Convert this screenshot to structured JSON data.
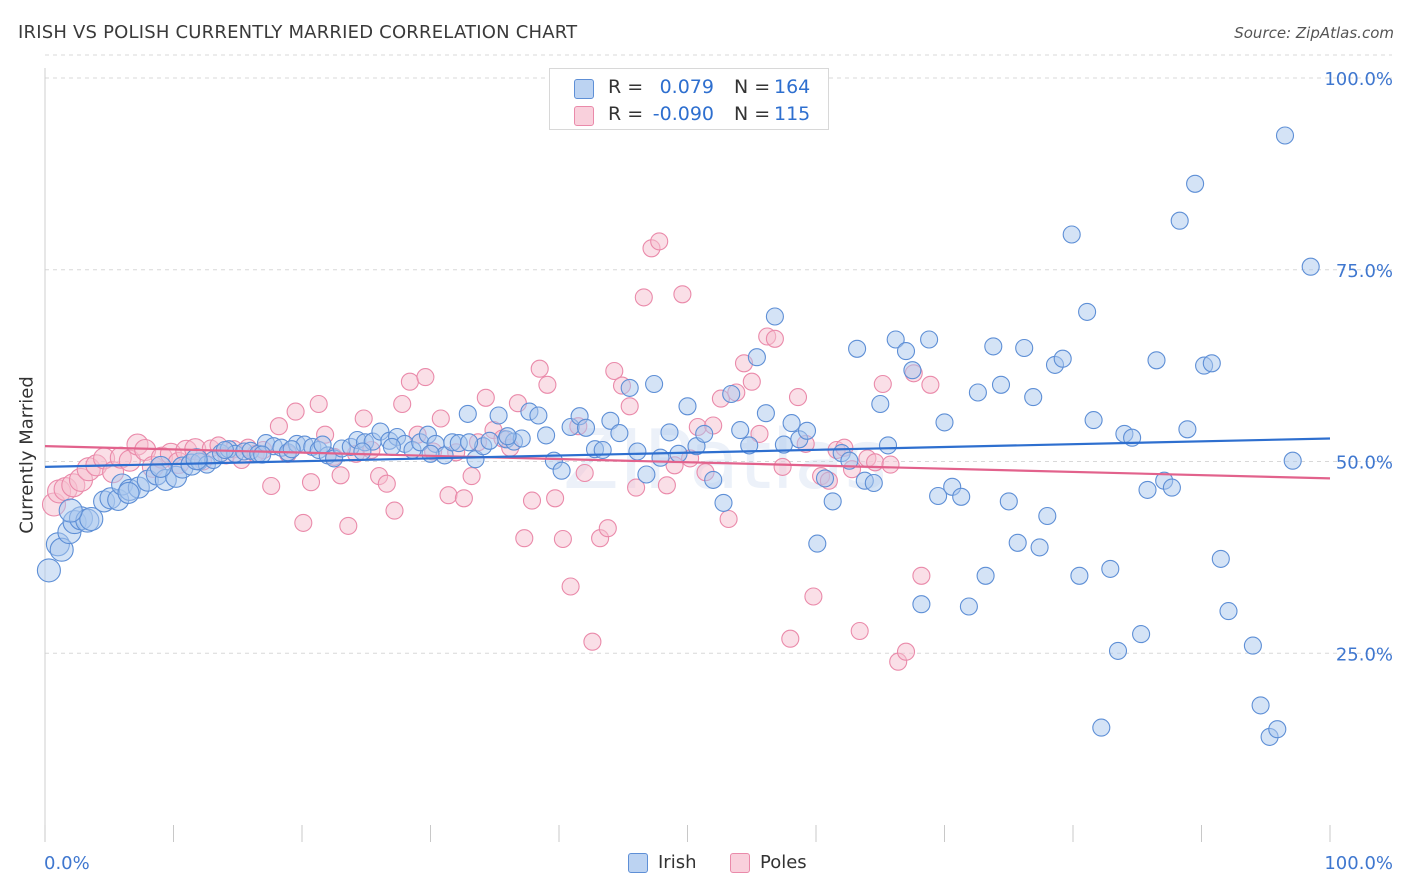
{
  "title": "IRISH VS POLISH CURRENTLY MARRIED CORRELATION CHART",
  "source": "Source: ZipAtlas.com",
  "watermark": "ZIPatlas",
  "legend_top": {
    "series": [
      {
        "r_label": "R =",
        "r_value": "0.079",
        "n_label": "N =",
        "n_value": "164"
      },
      {
        "r_label": "R =",
        "r_value": "-0.090",
        "n_label": "N =",
        "n_value": "115"
      }
    ]
  },
  "bottom_legend": [
    "Irish",
    "Poles"
  ],
  "colors": {
    "irish_fill": "#a9c7ee",
    "irish_stroke": "#5e8fd6",
    "irish_line": "#2e6fcf",
    "poles_fill": "#f6bfd0",
    "poles_stroke": "#ea8aaa",
    "poles_line": "#e2628c",
    "tick_text": "#3f77cf",
    "grid": "#d8d8d8"
  },
  "chart_data": {
    "type": "scatter",
    "title": "IRISH VS POLISH CURRENTLY MARRIED CORRELATION CHART",
    "xlabel": "",
    "ylabel": "Currently Married",
    "xlim": [
      0,
      100
    ],
    "ylim": [
      0,
      103
    ],
    "x_tick_labels": [
      "0.0%",
      "100.0%"
    ],
    "y_ticks": [
      25,
      50,
      75,
      100
    ],
    "y_tick_labels": [
      "25.0%",
      "50.0%",
      "75.0%",
      "100.0%"
    ],
    "grid": true,
    "legend_position": "top-center",
    "series": [
      {
        "name": "Irish",
        "r": 0.079,
        "n": 164,
        "trend": {
          "x": [
            0,
            100
          ],
          "y": [
            49.3,
            53.0
          ]
        },
        "points": [
          [
            0.3,
            35.8
          ],
          [
            1.0,
            39.2
          ],
          [
            1.3,
            38.5
          ],
          [
            1.9,
            40.8
          ],
          [
            2.3,
            42.1
          ],
          [
            2.8,
            42.6
          ],
          [
            3.3,
            42.3
          ],
          [
            3.6,
            42.5
          ],
          [
            4.6,
            44.8
          ],
          [
            5.1,
            45.2
          ],
          [
            5.7,
            45.0
          ],
          [
            6.0,
            47.0
          ],
          [
            6.6,
            46.3
          ],
          [
            7.3,
            46.6
          ],
          [
            8.0,
            47.5
          ],
          [
            8.7,
            48.3
          ],
          [
            9.4,
            47.6
          ],
          [
            10.2,
            48.0
          ],
          [
            10.7,
            49.2
          ],
          [
            11.4,
            49.6
          ],
          [
            12.0,
            50.0
          ],
          [
            12.6,
            49.6
          ],
          [
            13.1,
            50.2
          ],
          [
            13.7,
            51.1
          ],
          [
            14.3,
            51.6
          ],
          [
            14.8,
            51.0
          ],
          [
            15.5,
            51.3
          ],
          [
            16.0,
            51.4
          ],
          [
            16.6,
            51.0
          ],
          [
            17.2,
            52.4
          ],
          [
            17.8,
            52.0
          ],
          [
            18.4,
            51.8
          ],
          [
            18.9,
            51.2
          ],
          [
            19.6,
            52.3
          ],
          [
            20.2,
            52.2
          ],
          [
            20.8,
            51.9
          ],
          [
            21.3,
            51.5
          ],
          [
            22.0,
            50.8
          ],
          [
            22.5,
            50.4
          ],
          [
            23.1,
            51.7
          ],
          [
            23.8,
            51.9
          ],
          [
            24.3,
            52.8
          ],
          [
            24.9,
            52.5
          ],
          [
            25.5,
            52.6
          ],
          [
            26.1,
            53.9
          ],
          [
            26.8,
            52.7
          ],
          [
            27.4,
            53.2
          ],
          [
            28.0,
            52.3
          ],
          [
            28.6,
            51.5
          ],
          [
            29.2,
            52.5
          ],
          [
            29.8,
            53.5
          ],
          [
            30.4,
            52.3
          ],
          [
            31.1,
            50.8
          ],
          [
            31.7,
            52.5
          ],
          [
            32.2,
            52.4
          ],
          [
            32.9,
            56.2
          ],
          [
            33.5,
            50.3
          ],
          [
            34.1,
            52.0
          ],
          [
            34.6,
            52.7
          ],
          [
            35.3,
            56.0
          ],
          [
            35.9,
            52.9
          ],
          [
            36.5,
            52.6
          ],
          [
            37.1,
            53.0
          ],
          [
            37.7,
            56.5
          ],
          [
            38.4,
            56.0
          ],
          [
            39.0,
            53.4
          ],
          [
            39.6,
            50.1
          ],
          [
            40.2,
            48.8
          ],
          [
            40.9,
            54.5
          ],
          [
            41.6,
            55.9
          ],
          [
            42.1,
            54.4
          ],
          [
            42.8,
            51.6
          ],
          [
            43.4,
            51.5
          ],
          [
            44.0,
            55.3
          ],
          [
            44.7,
            53.7
          ],
          [
            45.5,
            59.6
          ],
          [
            46.1,
            51.3
          ],
          [
            46.8,
            48.3
          ],
          [
            47.4,
            60.1
          ],
          [
            47.9,
            50.5
          ],
          [
            48.6,
            53.8
          ],
          [
            49.3,
            51.0
          ],
          [
            50.0,
            57.2
          ],
          [
            50.7,
            52.0
          ],
          [
            51.3,
            53.6
          ],
          [
            52.0,
            47.6
          ],
          [
            52.8,
            44.6
          ],
          [
            53.4,
            58.8
          ],
          [
            54.1,
            54.1
          ],
          [
            54.8,
            52.1
          ],
          [
            55.4,
            63.6
          ],
          [
            56.1,
            56.3
          ],
          [
            56.8,
            68.9
          ],
          [
            57.5,
            52.2
          ],
          [
            58.1,
            55.0
          ],
          [
            58.7,
            52.9
          ],
          [
            59.3,
            54.0
          ],
          [
            60.1,
            39.3
          ],
          [
            60.7,
            47.8
          ],
          [
            61.3,
            44.8
          ],
          [
            62.0,
            51.1
          ],
          [
            62.6,
            50.1
          ],
          [
            63.2,
            64.7
          ],
          [
            63.8,
            47.5
          ],
          [
            64.5,
            47.2
          ],
          [
            65.0,
            57.5
          ],
          [
            65.6,
            52.1
          ],
          [
            66.2,
            65.9
          ],
          [
            67.0,
            64.4
          ],
          [
            67.5,
            61.9
          ],
          [
            68.2,
            31.4
          ],
          [
            68.8,
            65.9
          ],
          [
            69.5,
            45.5
          ],
          [
            70.0,
            55.1
          ],
          [
            70.6,
            46.7
          ],
          [
            71.3,
            45.4
          ],
          [
            71.9,
            31.1
          ],
          [
            72.6,
            59.0
          ],
          [
            73.2,
            35.1
          ],
          [
            73.8,
            65.0
          ],
          [
            74.4,
            60.0
          ],
          [
            75.0,
            44.8
          ],
          [
            75.7,
            39.4
          ],
          [
            76.2,
            64.8
          ],
          [
            76.9,
            58.4
          ],
          [
            77.4,
            38.8
          ],
          [
            78.0,
            42.9
          ],
          [
            78.6,
            62.6
          ],
          [
            79.2,
            63.4
          ],
          [
            79.9,
            79.6
          ],
          [
            80.5,
            35.1
          ],
          [
            81.1,
            69.5
          ],
          [
            81.6,
            55.4
          ],
          [
            82.2,
            15.3
          ],
          [
            82.9,
            36.0
          ],
          [
            83.5,
            25.3
          ],
          [
            84.0,
            53.6
          ],
          [
            84.6,
            53.1
          ],
          [
            85.3,
            27.5
          ],
          [
            85.8,
            46.3
          ],
          [
            86.5,
            63.2
          ],
          [
            87.1,
            47.5
          ],
          [
            87.7,
            46.6
          ],
          [
            88.3,
            81.4
          ],
          [
            88.9,
            54.2
          ],
          [
            89.5,
            86.2
          ],
          [
            90.2,
            62.5
          ],
          [
            90.8,
            62.8
          ],
          [
            91.5,
            37.3
          ],
          [
            92.1,
            30.5
          ],
          [
            94.0,
            26.0
          ],
          [
            94.6,
            18.2
          ],
          [
            95.3,
            14.1
          ],
          [
            95.9,
            15.1
          ],
          [
            96.5,
            92.5
          ],
          [
            97.1,
            50.1
          ],
          [
            98.5,
            75.4
          ],
          [
            2.0,
            43.6
          ],
          [
            6.5,
            45.9
          ],
          [
            9.0,
            49.3
          ],
          [
            11.8,
            50.3
          ],
          [
            14.0,
            51.5
          ],
          [
            16.9,
            50.9
          ],
          [
            19.2,
            51.6
          ],
          [
            21.6,
            52.2
          ],
          [
            24.7,
            51.3
          ],
          [
            27.0,
            51.9
          ],
          [
            30.0,
            51.0
          ],
          [
            33.0,
            52.5
          ],
          [
            36.0,
            53.3
          ]
        ]
      },
      {
        "name": "Poles",
        "r": -0.09,
        "n": 115,
        "trend": {
          "x": [
            0,
            100
          ],
          "y": [
            52.0,
            47.8
          ]
        },
        "points": [
          [
            0.7,
            44.4
          ],
          [
            1.1,
            46.1
          ],
          [
            1.6,
            46.4
          ],
          [
            2.2,
            46.9
          ],
          [
            2.8,
            47.6
          ],
          [
            3.4,
            49.0
          ],
          [
            4.0,
            49.5
          ],
          [
            4.6,
            50.4
          ],
          [
            5.3,
            48.6
          ],
          [
            5.9,
            50.5
          ],
          [
            6.6,
            50.1
          ],
          [
            7.2,
            52.2
          ],
          [
            7.8,
            51.5
          ],
          [
            8.4,
            49.3
          ],
          [
            9.1,
            50.5
          ],
          [
            9.8,
            51.0
          ],
          [
            10.4,
            49.8
          ],
          [
            11.0,
            51.4
          ],
          [
            11.7,
            51.6
          ],
          [
            12.3,
            50.0
          ],
          [
            12.9,
            51.7
          ],
          [
            13.5,
            52.1
          ],
          [
            14.1,
            50.8
          ],
          [
            14.7,
            51.6
          ],
          [
            15.3,
            50.2
          ],
          [
            15.8,
            51.8
          ],
          [
            16.4,
            51.0
          ],
          [
            17.0,
            51.5
          ],
          [
            17.6,
            46.8
          ],
          [
            18.2,
            54.6
          ],
          [
            18.9,
            51.0
          ],
          [
            19.5,
            56.5
          ],
          [
            20.1,
            42.0
          ],
          [
            20.7,
            47.3
          ],
          [
            21.3,
            57.5
          ],
          [
            21.8,
            53.5
          ],
          [
            22.5,
            50.6
          ],
          [
            23.0,
            48.2
          ],
          [
            23.6,
            41.6
          ],
          [
            24.2,
            51.0
          ],
          [
            24.8,
            55.6
          ],
          [
            25.4,
            51.5
          ],
          [
            26.0,
            48.1
          ],
          [
            26.6,
            47.1
          ],
          [
            27.2,
            43.6
          ],
          [
            27.8,
            57.5
          ],
          [
            28.4,
            60.4
          ],
          [
            29.0,
            53.5
          ],
          [
            29.6,
            61.0
          ],
          [
            30.2,
            51.3
          ],
          [
            30.8,
            55.6
          ],
          [
            31.4,
            45.6
          ],
          [
            32.0,
            51.2
          ],
          [
            32.6,
            45.2
          ],
          [
            33.2,
            48.1
          ],
          [
            33.7,
            52.5
          ],
          [
            34.3,
            58.3
          ],
          [
            34.9,
            54.1
          ],
          [
            35.6,
            53.0
          ],
          [
            36.2,
            51.8
          ],
          [
            36.8,
            57.6
          ],
          [
            37.3,
            40.0
          ],
          [
            37.9,
            44.9
          ],
          [
            38.5,
            62.1
          ],
          [
            39.1,
            60.0
          ],
          [
            39.7,
            45.2
          ],
          [
            40.3,
            39.9
          ],
          [
            40.9,
            33.7
          ],
          [
            41.5,
            54.6
          ],
          [
            42.0,
            48.5
          ],
          [
            42.6,
            26.5
          ],
          [
            43.2,
            40.0
          ],
          [
            43.8,
            41.3
          ],
          [
            44.3,
            61.8
          ],
          [
            44.9,
            59.9
          ],
          [
            45.5,
            57.2
          ],
          [
            46.0,
            46.6
          ],
          [
            46.6,
            71.4
          ],
          [
            47.2,
            77.8
          ],
          [
            47.8,
            78.7
          ],
          [
            48.4,
            46.9
          ],
          [
            49.0,
            49.5
          ],
          [
            49.6,
            71.8
          ],
          [
            50.2,
            50.4
          ],
          [
            50.8,
            54.5
          ],
          [
            51.4,
            48.6
          ],
          [
            52.0,
            54.7
          ],
          [
            52.6,
            58.2
          ],
          [
            53.2,
            42.5
          ],
          [
            53.8,
            59.0
          ],
          [
            54.4,
            62.8
          ],
          [
            55.0,
            60.4
          ],
          [
            55.6,
            53.6
          ],
          [
            56.2,
            66.3
          ],
          [
            56.8,
            66.0
          ],
          [
            57.4,
            49.3
          ],
          [
            58.0,
            26.9
          ],
          [
            58.6,
            58.4
          ],
          [
            59.2,
            52.3
          ],
          [
            59.8,
            32.4
          ],
          [
            60.4,
            48.1
          ],
          [
            61.0,
            47.5
          ],
          [
            61.6,
            51.5
          ],
          [
            62.2,
            51.8
          ],
          [
            62.8,
            49.0
          ],
          [
            63.4,
            27.9
          ],
          [
            64.0,
            50.4
          ],
          [
            64.6,
            49.9
          ],
          [
            65.2,
            60.1
          ],
          [
            65.8,
            49.6
          ],
          [
            66.4,
            23.9
          ],
          [
            67.0,
            25.2
          ],
          [
            67.6,
            61.5
          ],
          [
            68.2,
            35.1
          ],
          [
            68.9,
            60.0
          ]
        ]
      }
    ]
  }
}
